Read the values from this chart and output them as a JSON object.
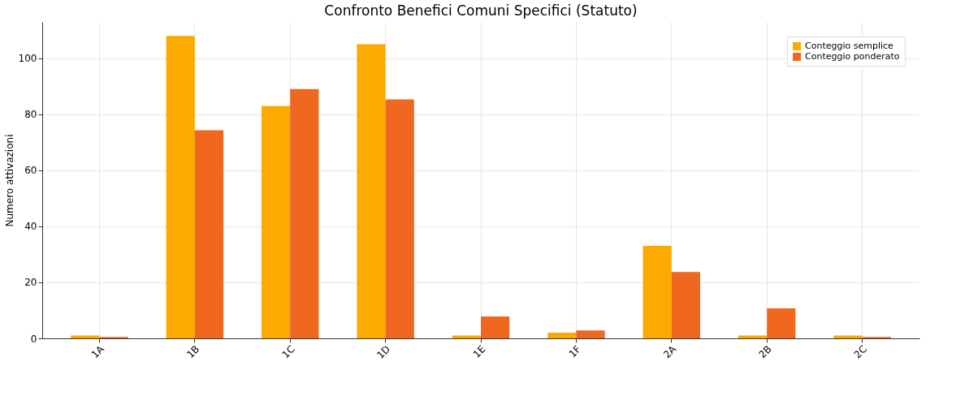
{
  "chart_data": {
    "type": "bar",
    "title": "Confronto Benefici Comuni Specifici (Statuto)",
    "ylabel": "Numero attivazioni",
    "categories": [
      "1A",
      "1B",
      "1C",
      "1D",
      "1E",
      "1F",
      "2A",
      "2B",
      "2C"
    ],
    "series": [
      {
        "name": "Conteggio semplice",
        "color": "#fbab00",
        "values": [
          1,
          108,
          83,
          105,
          1,
          2,
          33,
          1,
          1
        ]
      },
      {
        "name": "Conteggio ponderato",
        "color": "#f06820",
        "values": [
          0.5,
          74.3,
          89,
          85.3,
          7.8,
          2.8,
          23.7,
          10.7,
          0.5
        ]
      }
    ],
    "ylim": [
      0,
      113
    ],
    "yticks": [
      0,
      20,
      40,
      60,
      80,
      100
    ],
    "grid": true,
    "legend": "top right"
  }
}
